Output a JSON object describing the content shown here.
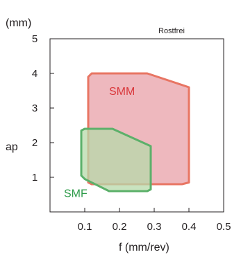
{
  "chart_data": {
    "type": "area",
    "title": "Rostfrei",
    "unit_label": "(mm)",
    "xlabel": "f (mm/rev)",
    "ylabel": "ap",
    "xlim": [
      0,
      0.5
    ],
    "ylim": [
      0,
      5
    ],
    "x_ticks": [
      0.1,
      0.2,
      0.3,
      0.4,
      0.5
    ],
    "x_tick_labels": [
      "0.1",
      "0.2",
      "0.3",
      "0.4",
      "0.5"
    ],
    "y_ticks": [
      1,
      2,
      3,
      4,
      5
    ],
    "y_tick_labels": [
      "1",
      "2",
      "3",
      "4",
      "5"
    ],
    "grid": false,
    "series": [
      {
        "name": "SMM",
        "color": "#e87563",
        "fill": "#e8a0a8",
        "label_pos": [
          0.17,
          3.5
        ],
        "points": [
          [
            0.11,
            3.9
          ],
          [
            0.12,
            4.0
          ],
          [
            0.28,
            4.0
          ],
          [
            0.4,
            3.6
          ],
          [
            0.4,
            0.85
          ],
          [
            0.38,
            0.8
          ],
          [
            0.12,
            0.8
          ],
          [
            0.11,
            0.85
          ]
        ]
      },
      {
        "name": "SMF",
        "color": "#5cb06a",
        "fill": "#b7d9a9",
        "label_pos": [
          0.04,
          0.55
        ],
        "points": [
          [
            0.09,
            2.35
          ],
          [
            0.1,
            2.4
          ],
          [
            0.18,
            2.4
          ],
          [
            0.29,
            1.9
          ],
          [
            0.29,
            0.65
          ],
          [
            0.28,
            0.6
          ],
          [
            0.17,
            0.6
          ],
          [
            0.1,
            0.95
          ],
          [
            0.09,
            1.05
          ]
        ]
      }
    ]
  }
}
